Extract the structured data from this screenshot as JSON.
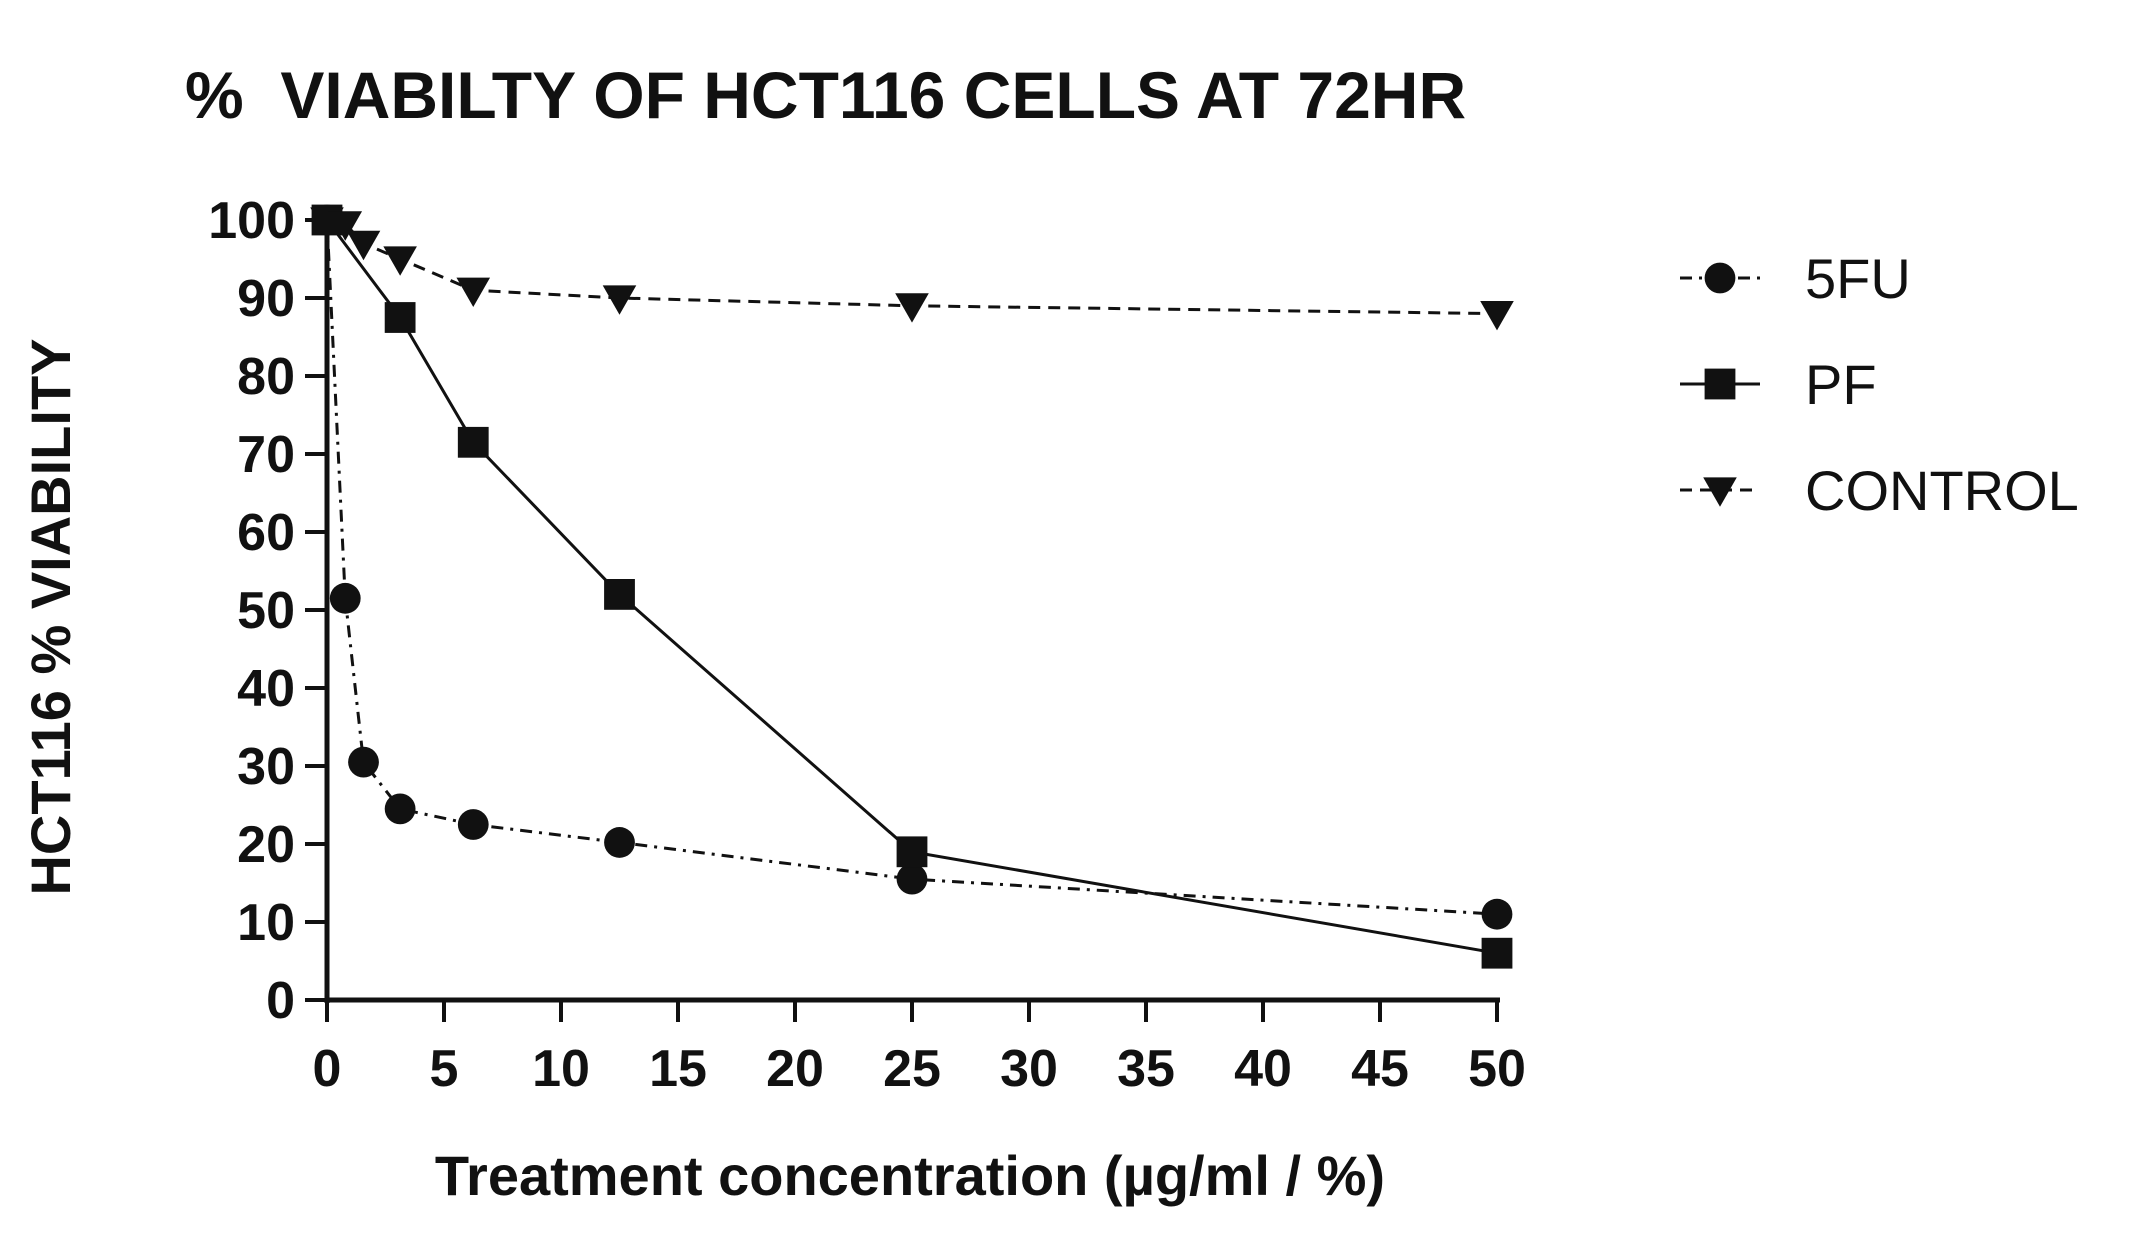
{
  "chart_data": {
    "type": "line",
    "title": "%  VIABILTY OF HCT116 CELLS AT 72HR",
    "xlabel": "Treatment concentration (µg/ml / %)",
    "ylabel": "HCT116 % VIABILITY",
    "xlim": [
      0,
      50
    ],
    "ylim": [
      0,
      100
    ],
    "xticks": [
      0,
      5,
      10,
      15,
      20,
      25,
      30,
      35,
      40,
      45,
      50
    ],
    "yticks": [
      0,
      10,
      20,
      30,
      40,
      50,
      60,
      70,
      80,
      90,
      100
    ],
    "grid": false,
    "legend_position": "right",
    "series": [
      {
        "name": "5FU",
        "marker": "circle",
        "line_style": "dash-dot",
        "x": [
          0,
          0.78,
          1.56,
          3.125,
          6.25,
          12.5,
          25,
          50
        ],
        "y": [
          100,
          51.5,
          30.5,
          24.5,
          22.5,
          20.2,
          15.5,
          11
        ]
      },
      {
        "name": "PF",
        "marker": "square",
        "line_style": "solid",
        "x": [
          0,
          3.125,
          6.25,
          12.5,
          25,
          50
        ],
        "y": [
          100,
          87.5,
          71.5,
          52,
          19,
          6
        ]
      },
      {
        "name": "CONTROL",
        "marker": "triangle-down",
        "line_style": "dashed",
        "x": [
          0,
          0.78,
          1.56,
          3.125,
          6.25,
          12.5,
          25,
          50
        ],
        "y": [
          100,
          99.5,
          97,
          95,
          91,
          90,
          89,
          88
        ]
      }
    ]
  }
}
